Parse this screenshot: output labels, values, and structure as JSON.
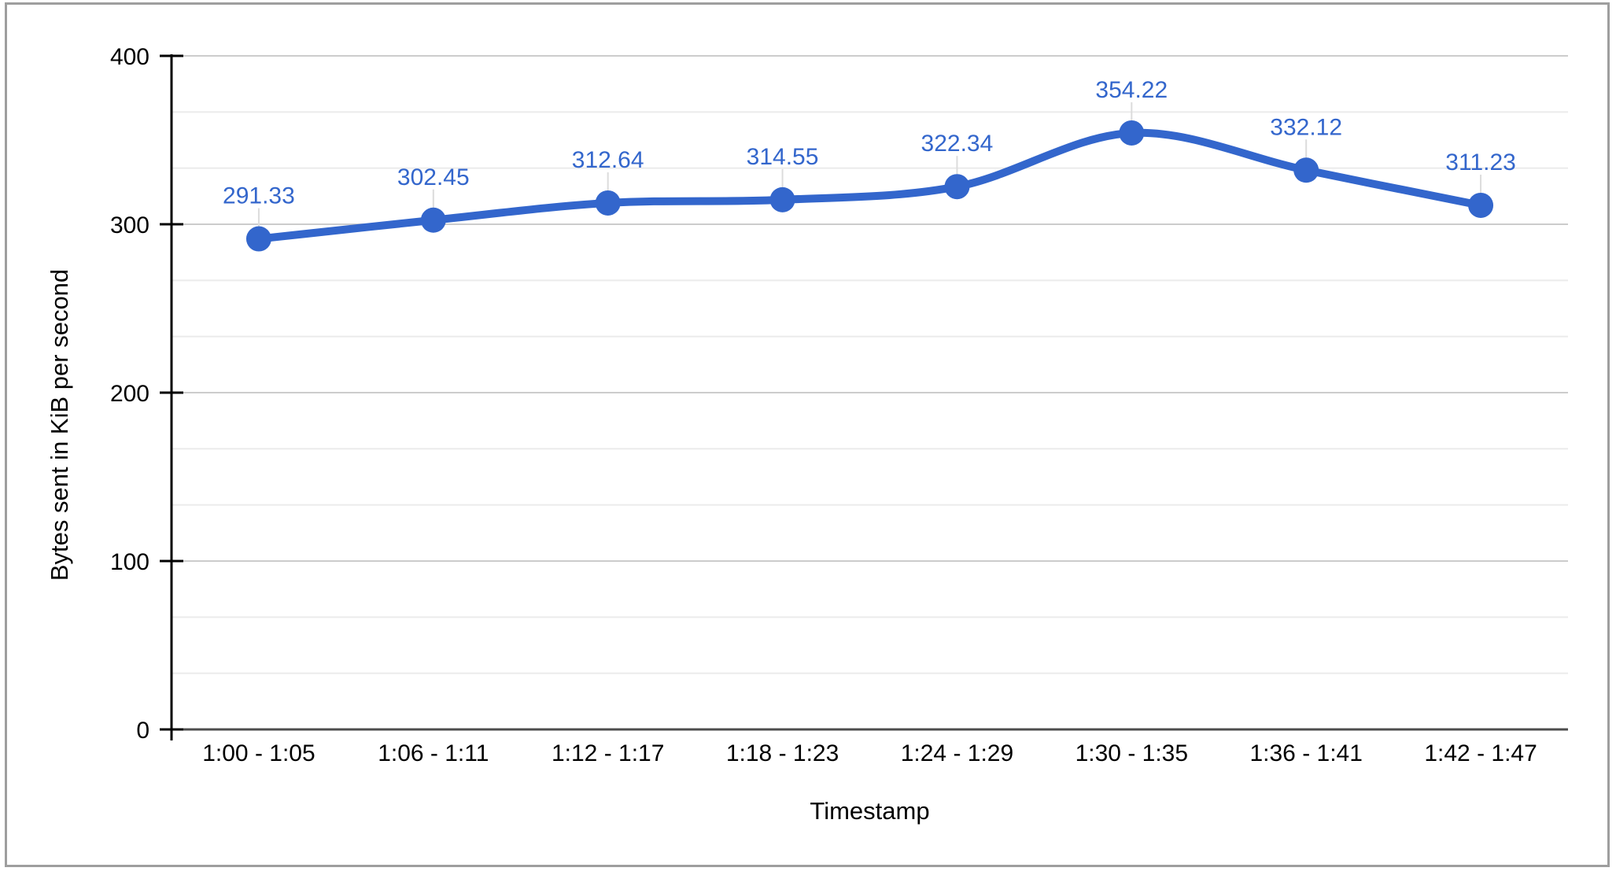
{
  "chart_data": {
    "type": "line",
    "title": "",
    "categories": [
      "1:00 - 1:05",
      "1:06 - 1:11",
      "1:12 - 1:17",
      "1:18 - 1:23",
      "1:24 - 1:29",
      "1:30 - 1:35",
      "1:36 - 1:41",
      "1:42 - 1:47"
    ],
    "values": [
      291.33,
      302.45,
      312.64,
      314.55,
      322.34,
      354.22,
      332.12,
      311.23
    ],
    "point_labels": [
      "291.33",
      "302.45",
      "312.64",
      "314.55",
      "322.34",
      "354.22",
      "332.12",
      "311.23"
    ],
    "xlabel": "Timestamp",
    "ylabel": "Bytes sent in KiB per second",
    "ylim": [
      0,
      400
    ],
    "yticks": [
      0,
      100,
      200,
      300,
      400
    ],
    "y_tick_labels": [
      "0",
      "100",
      "200",
      "300",
      "400"
    ],
    "minor_gridlines_between_major": 2,
    "grid": true,
    "vertical_gridlines": false,
    "legend_position": "none",
    "curve": "smooth",
    "marker": "circle",
    "colors": {
      "series": "#3366cc",
      "annotation_text": "#3366cc",
      "annotation_stem": "#dcdcdc",
      "major_gridline": "#cccccc",
      "minor_gridline": "#ebebeb",
      "baseline": "#4d4d4d",
      "axis": "#000000",
      "tick_label": "#000000",
      "frame_border": "#9e9e9e",
      "background": "#ffffff"
    }
  }
}
